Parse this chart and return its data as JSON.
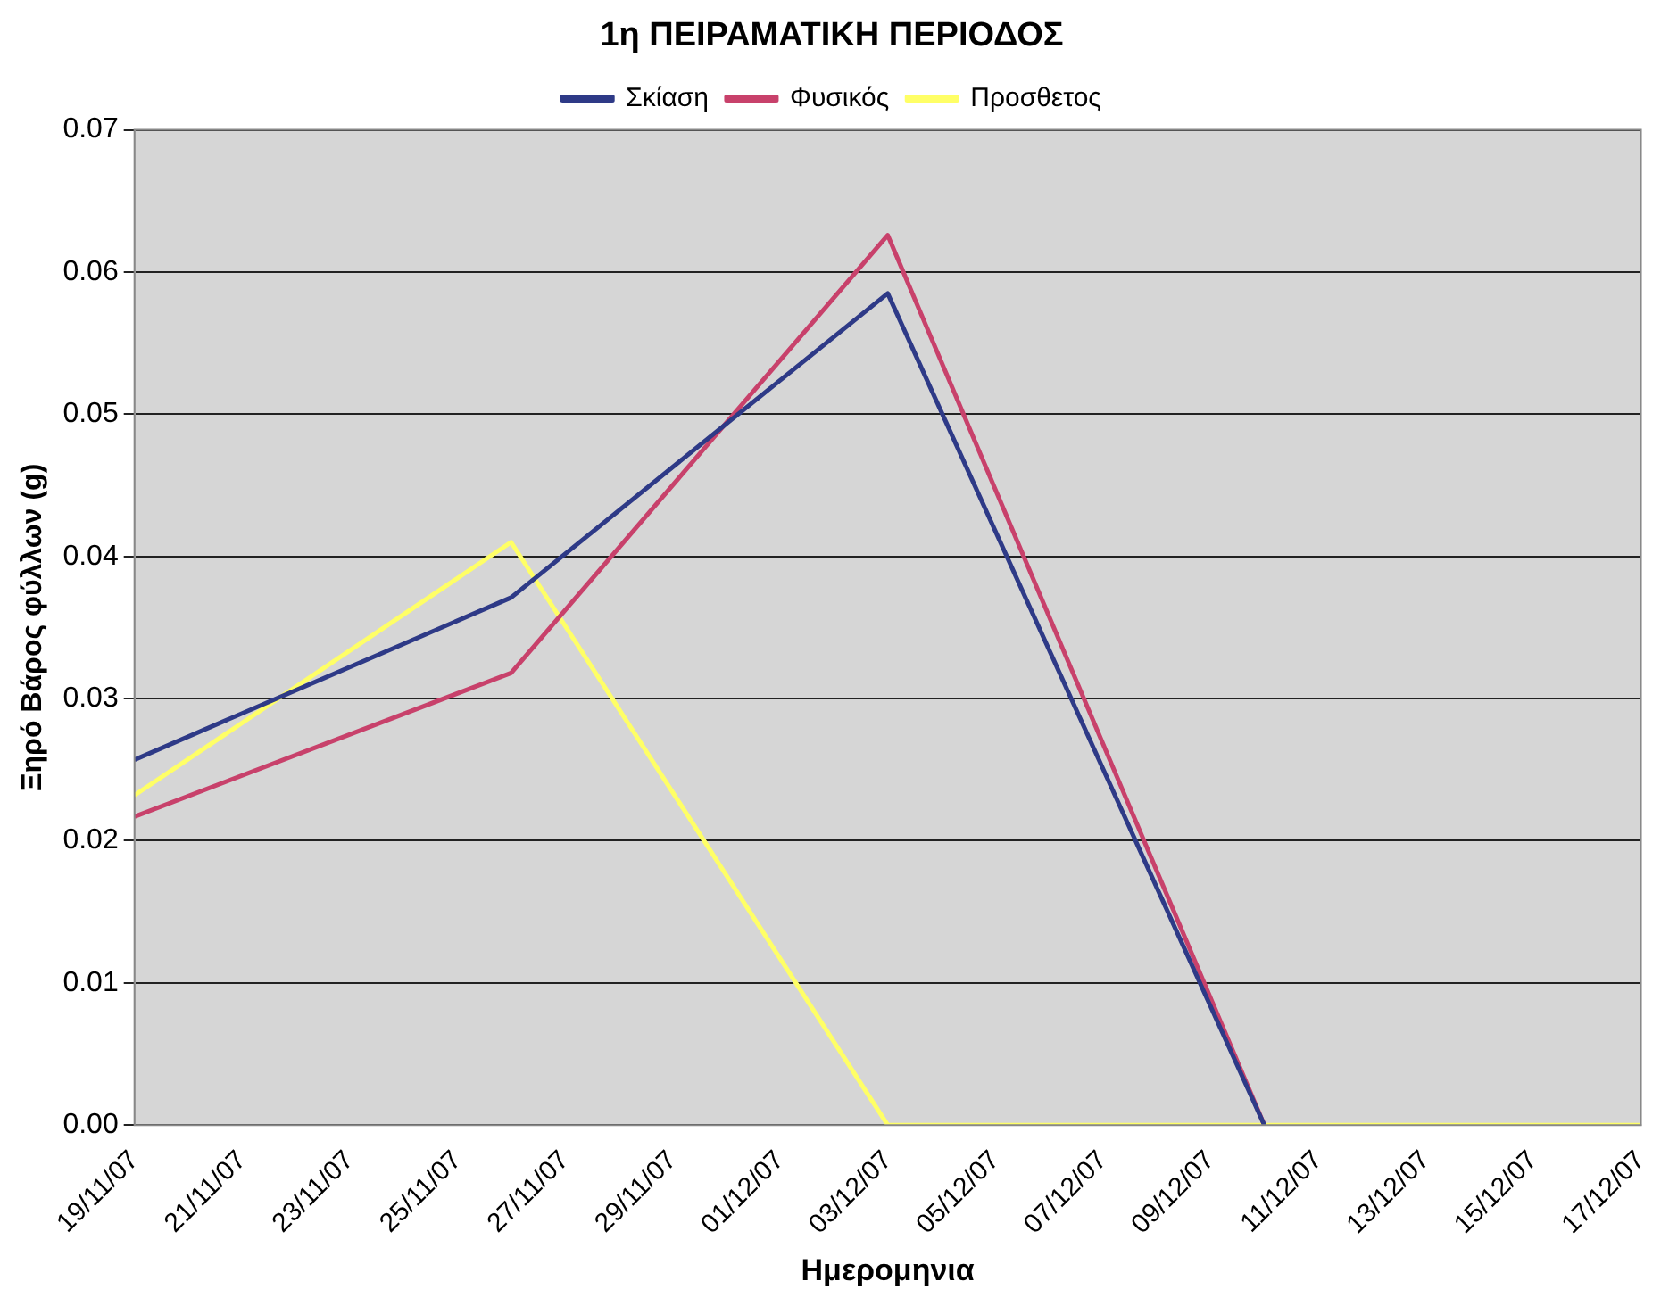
{
  "chart_data": {
    "type": "line",
    "title": "1η ΠΕΙΡΑΜΑΤΙΚΗ ΠΕΡΙΟΔΟΣ",
    "xlabel": "Ημερομηνια",
    "ylabel": "Ξηρό Βάρος φύλλων (g)",
    "x": [
      "--11-19",
      "--11-26",
      "--12-03",
      "--12-10",
      "--12-17"
    ],
    "series": [
      {
        "name": "Σκίαση",
        "color": "#2e3a87",
        "values": [
          0.0257,
          0.0371,
          0.0585,
          0,
          null
        ]
      },
      {
        "name": "Φυσικός",
        "color": "#c8416b",
        "values": [
          0.0217,
          0.0318,
          0.0626,
          0,
          null
        ]
      },
      {
        "name": "Προσθετος",
        "color": "#ffff66",
        "values": [
          0.0232,
          0.041,
          0,
          0,
          0
        ]
      }
    ],
    "xlim": [
      "--11-19",
      "--12-17"
    ],
    "xticks": [
      {
        "value": "--11-19",
        "label": "19/11/07"
      },
      {
        "value": "--11-21",
        "label": "21/11/07"
      },
      {
        "value": "--11-23",
        "label": "23/11/07"
      },
      {
        "value": "--11-25",
        "label": "25/11/07"
      },
      {
        "value": "--11-27",
        "label": "27/11/07"
      },
      {
        "value": "--11-29",
        "label": "29/11/07"
      },
      {
        "value": "--12-01",
        "label": "01/12/07"
      },
      {
        "value": "--12-03",
        "label": "03/12/07"
      },
      {
        "value": "--12-05",
        "label": "05/12/07"
      },
      {
        "value": "--12-07",
        "label": "07/12/07"
      },
      {
        "value": "--12-09",
        "label": "09/12/07"
      },
      {
        "value": "--12-11",
        "label": "11/12/07"
      },
      {
        "value": "--12-13",
        "label": "13/12/07"
      },
      {
        "value": "--12-15",
        "label": "15/12/07"
      },
      {
        "value": "--12-17",
        "label": "17/12/07"
      }
    ],
    "ylim": [
      0,
      0.07
    ],
    "yticks": [
      {
        "value": 0,
        "label": "0.00"
      },
      {
        "value": 0.01,
        "label": "0.01"
      },
      {
        "value": 0.02,
        "label": "0.02"
      },
      {
        "value": 0.03,
        "label": "0.03"
      },
      {
        "value": 0.04,
        "label": "0.04"
      },
      {
        "value": 0.05,
        "label": "0.05"
      },
      {
        "value": 0.06,
        "label": "0.06"
      },
      {
        "value": 0.07,
        "label": "0.07"
      }
    ],
    "grid": "y",
    "legend": "top",
    "marker": "none",
    "line_style": "solid"
  }
}
